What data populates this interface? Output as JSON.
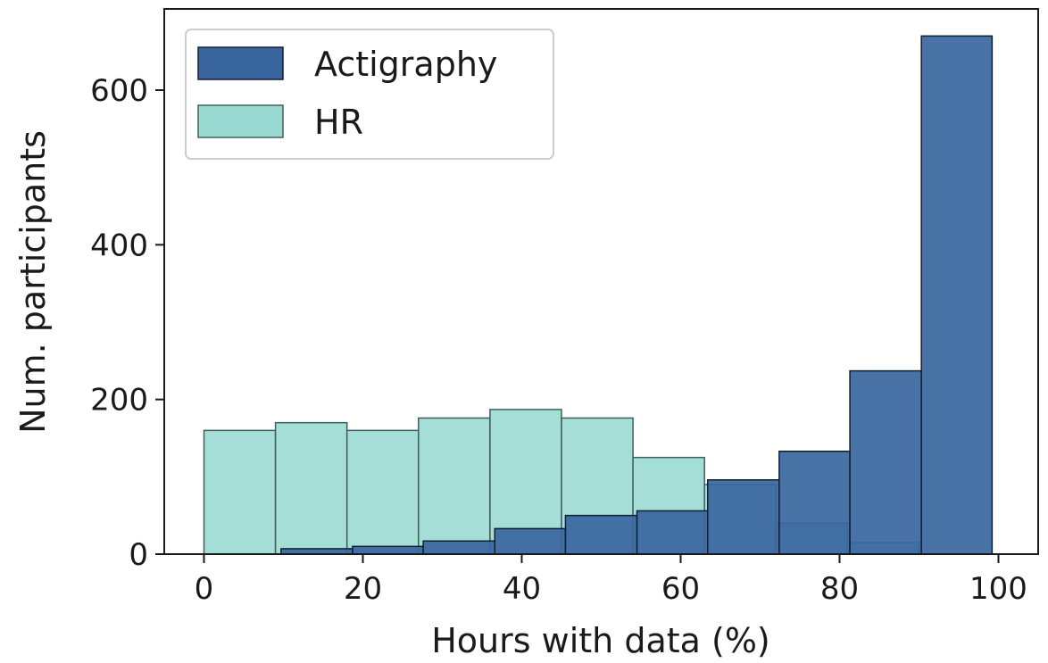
{
  "chart_data": {
    "type": "histogram",
    "title": "",
    "xlabel": "Hours with data (%)",
    "ylabel": "Num. participants",
    "xlim": [
      -5,
      105
    ],
    "ylim": [
      0,
      705
    ],
    "xticks": [
      0,
      20,
      40,
      60,
      80,
      100
    ],
    "yticks": [
      0,
      200,
      400,
      600
    ],
    "grid": false,
    "legend": {
      "placement": "top-left"
    },
    "series": [
      {
        "name": "HR",
        "color": "#98d9d2",
        "edge": "#3f5f5c",
        "opacity": 0.88,
        "bins": [
          0,
          9,
          18,
          27,
          36,
          45,
          54,
          63,
          72,
          81,
          90
        ],
        "values": [
          160,
          170,
          160,
          176,
          187,
          176,
          125,
          90,
          40,
          15
        ]
      },
      {
        "name": "Actigraphy",
        "color": "#3a66a0",
        "edge": "#0f1f33",
        "opacity": 0.92,
        "bins": [
          9.7,
          18.7,
          27.6,
          36.6,
          45.5,
          54.5,
          63.4,
          72.4,
          81.3,
          90.3,
          99.2
        ],
        "values": [
          7,
          10,
          17,
          33,
          50,
          56,
          96,
          133,
          237,
          670
        ]
      }
    ],
    "legend_order": [
      "Actigraphy",
      "HR"
    ]
  }
}
